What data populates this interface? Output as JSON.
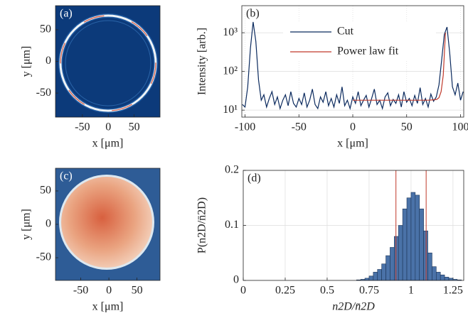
{
  "chart_data": [
    {
      "type": "image",
      "panel_label": "(a)",
      "xlabel": "x [μm]",
      "ylabel": "y [μm]",
      "xlim": [
        -102,
        100
      ],
      "ylim": [
        -88,
        88
      ],
      "xticks": [
        -50,
        0,
        50
      ],
      "yticks": [
        -50,
        0,
        50
      ]
    },
    {
      "type": "line",
      "panel_label": "(b)",
      "xlabel": "x [μm]",
      "ylabel": "Intensity [arb.]",
      "log_y": true,
      "grid": true,
      "legend": "top",
      "xlim": [
        -103,
        103
      ],
      "ylim": [
        6.6,
        5000
      ],
      "xticks": [
        -100,
        -50,
        0,
        50,
        100
      ],
      "yticks": [
        {
          "value": 10,
          "label": "10¹"
        },
        {
          "value": 100,
          "label": "10²"
        },
        {
          "value": 1000,
          "label": "10³"
        }
      ],
      "series": [
        {
          "name": "Cut",
          "color": "#0b2a5e",
          "x": [
            -102.5,
            -100,
            -97.5,
            -95,
            -92.5,
            -90,
            -87.5,
            -85,
            -82.5,
            -80,
            -77.5,
            -75,
            -72.5,
            -70,
            -67.5,
            -65,
            -62.5,
            -60,
            -57.5,
            -55,
            -52.5,
            -50,
            -47.5,
            -45,
            -42.5,
            -40,
            -37.5,
            -35,
            -32.5,
            -30,
            -27.5,
            -25,
            -22.5,
            -20,
            -17.5,
            -15,
            -12.5,
            -10,
            -7.5,
            -5,
            -2.5,
            0,
            2.5,
            5,
            7.5,
            10,
            12.5,
            15,
            17.5,
            20,
            22.5,
            25,
            27.5,
            30,
            32.5,
            35,
            37.5,
            40,
            42.5,
            45,
            47.5,
            50,
            52.5,
            55,
            57.5,
            60,
            62.5,
            65,
            67.5,
            70,
            72.5,
            75,
            77.5,
            80,
            82.5,
            85,
            87.5,
            90,
            92.5,
            95,
            97.5,
            100,
            102.5
          ],
          "values": [
            14,
            12,
            40,
            400,
            1900,
            600,
            60,
            18,
            25,
            12,
            20,
            30,
            14,
            22,
            11,
            18,
            25,
            13,
            30,
            15,
            12,
            20,
            14,
            28,
            12,
            18,
            35,
            14,
            11,
            22,
            16,
            30,
            13,
            20,
            12,
            25,
            15,
            40,
            13,
            18,
            11,
            22,
            15,
            30,
            13,
            18,
            24,
            12,
            20,
            35,
            14,
            18,
            11,
            22,
            28,
            13,
            19,
            15,
            25,
            12,
            30,
            16,
            20,
            13,
            24,
            15,
            38,
            14,
            20,
            12,
            26,
            17,
            22,
            45,
            200,
            900,
            1400,
            300,
            40,
            25,
            50,
            18,
            30
          ]
        },
        {
          "name": "Power law fit",
          "color": "#c0392b",
          "x": [
            0,
            10,
            20,
            30,
            40,
            50,
            60,
            70,
            75,
            78,
            80,
            82,
            84,
            86
          ],
          "values": [
            18,
            18,
            18,
            18,
            18,
            18,
            18,
            18,
            18.5,
            19,
            21,
            30,
            80,
            1000
          ]
        }
      ]
    },
    {
      "type": "image",
      "panel_label": "(c)",
      "xlabel": "x [μm]",
      "ylabel": "y [μm]",
      "xlim": [
        -95,
        91
      ],
      "ylim": [
        -84,
        84
      ],
      "xticks": [
        -50,
        0,
        50
      ],
      "yticks": [
        -50,
        0,
        50
      ]
    },
    {
      "type": "histogram",
      "panel_label": "(d)",
      "xlabel": "n2D/n̄2D",
      "ylabel": "P(n2D/n̄2D)",
      "grid": true,
      "color": "#4a72a8",
      "xlim": [
        0,
        1.314
      ],
      "ylim": [
        0,
        0.2
      ],
      "xticks": [
        0,
        0.25,
        0.5,
        0.75,
        1,
        1.25
      ],
      "yticks": [
        0,
        0.1,
        0.2
      ],
      "bins": [
        0.675,
        0.7,
        0.725,
        0.75,
        0.775,
        0.8,
        0.825,
        0.85,
        0.875,
        0.9,
        0.925,
        0.95,
        0.975,
        1.0,
        1.025,
        1.05,
        1.075,
        1.1,
        1.125,
        1.15,
        1.175,
        1.2,
        1.225,
        1.25,
        1.275,
        1.3
      ],
      "values": [
        0.001,
        0.002,
        0.004,
        0.008,
        0.015,
        0.02,
        0.03,
        0.045,
        0.06,
        0.08,
        0.1,
        0.13,
        0.15,
        0.16,
        0.155,
        0.13,
        0.09,
        0.05,
        0.025,
        0.015,
        0.01,
        0.006,
        0.004,
        0.002,
        0.001
      ],
      "vlines": [
        0.91,
        1.09
      ],
      "vline_color": "#c0392b"
    }
  ]
}
